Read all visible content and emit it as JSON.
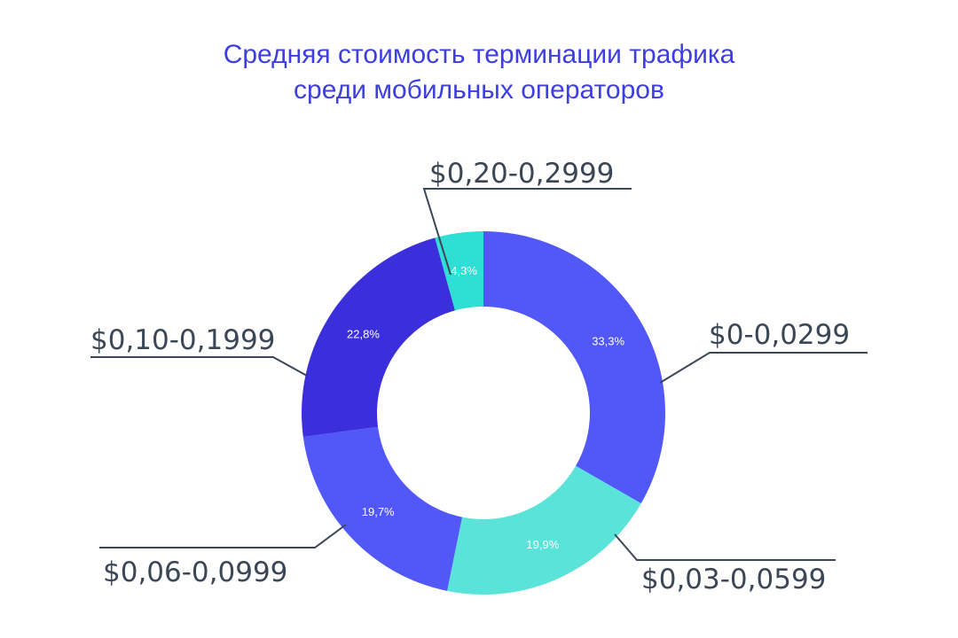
{
  "chart_data": {
    "type": "pie",
    "donut": true,
    "title": "Средняя стоимость терминации трафика среди мобильных операторов",
    "title_lines": [
      "Средняя стоимость терминации трафика",
      "среди мобильных операторов"
    ],
    "categories": [
      "$0-0,0299",
      "$0,03-0,0599",
      "$0,06-0,0999",
      "$0,10-0,1999",
      "$0,20-0,2999"
    ],
    "values": [
      33.3,
      19.9,
      19.7,
      22.8,
      4.3
    ],
    "value_labels": [
      "33,3%",
      "19,9%",
      "19,7%",
      "22,8%",
      "4,3%"
    ],
    "colors": [
      "#5158f7",
      "#5ae3d9",
      "#5158f7",
      "#3a2fdb",
      "#2fded4"
    ],
    "legend": "none"
  },
  "colors": {
    "title": "#3d3ee0",
    "label_text": "#3b4656",
    "leader_line": "#3b4656"
  }
}
